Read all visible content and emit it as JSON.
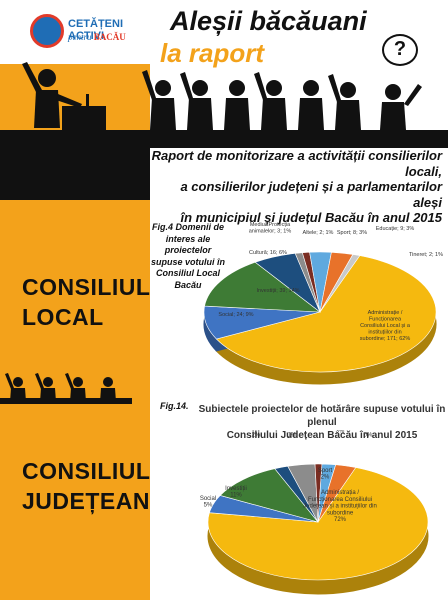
{
  "logo": {
    "line1": "CETĂȚENI ACTIVI",
    "line2_prefix": "pentru",
    "line2_city": "BACĂU"
  },
  "header": {
    "title_line1": "Aleșii băcăuani",
    "title_line2": "la raport",
    "question_mark": "?"
  },
  "report": {
    "lines": [
      "Raport de monitorizare a activității consilierilor locali,",
      "a consilierilor județeni și a parlamentarilor aleși",
      "în municipiul și județul Bacău în anul 2015"
    ]
  },
  "sections": {
    "local": {
      "line1": "CONSILIUL",
      "line2": "LOCAL"
    },
    "judetean": {
      "line1": "CONSILIUL",
      "line2": "JUDEȚEAN"
    }
  },
  "colors": {
    "orange": "#f3a21b",
    "black": "#111111",
    "blue": "#1f6db5",
    "red": "#e23b2a"
  },
  "chart_data": [
    {
      "type": "pie",
      "figure_label": "Fig.4",
      "title": "Domenii de interes ale proiectelor supuse votului în Consiliul Local Bacău",
      "slices": [
        {
          "label": "Administrație / Funcționarea Consiliului Local și a instituțiilor din subordine",
          "value": 171,
          "percent": 62,
          "color": "#f5b90f"
        },
        {
          "label": "Social",
          "value": 24,
          "percent": 9,
          "color": "#3f74c3"
        },
        {
          "label": "Investiții",
          "value": 39,
          "percent": 14,
          "color": "#3e7b35"
        },
        {
          "label": "Cultură",
          "value": 16,
          "percent": 6,
          "color": "#1d4e7e"
        },
        {
          "label": "Mediu&Protecția animalelor",
          "value": 3,
          "percent": 1,
          "color": "#8c8c8c"
        },
        {
          "label": "Altele",
          "value": 2,
          "percent": 1,
          "color": "#7a2d22"
        },
        {
          "label": "Sport",
          "value": 8,
          "percent": 3,
          "color": "#5fa9df"
        },
        {
          "label": "Educație",
          "value": 9,
          "percent": 3,
          "color": "#e8722a"
        },
        {
          "label": "Tineret",
          "value": 2,
          "percent": 1,
          "color": "#c9c9c9"
        }
      ],
      "data_labels": [
        "Administrație / Funcționarea Consiliului Local și a instituțiilor din subordine; 171; 62%",
        "Social; 24; 9%",
        "Investiții; 39; 14%",
        "Cultură; 16; 6%",
        "Mediu&Protecția animalelor; 3; 1%",
        "Altele; 2; 1%",
        "Sport; 8; 3%",
        "Educație; 9; 3%",
        "Tineret; 2; 1%"
      ]
    },
    {
      "type": "pie",
      "figure_label": "Fig.14.",
      "title_lines": [
        "Subiectele proiectelor de hotărâre supuse votului în plenul",
        "Consiliului Județean Bacău în anul 2015"
      ],
      "slices": [
        {
          "label": "Administrația / Funcționarea Consiliului Județean și a instituțiilor din subordine",
          "percent": 72,
          "color": "#f5b90f"
        },
        {
          "label": "Social",
          "percent": 5,
          "color": "#3f74c3"
        },
        {
          "label": "Investiții",
          "percent": 11,
          "color": "#3e7b35"
        },
        {
          "label": "Cultură",
          "percent": 2,
          "color": "#1d4e7e"
        },
        {
          "label": "Mediu&Protecția animalelor",
          "percent": 4,
          "color": "#8c8c8c"
        },
        {
          "label": "Altele",
          "percent": 1,
          "color": "#7a2d22"
        },
        {
          "label": "Sport",
          "percent": 2,
          "color": "#5fa9df"
        },
        {
          "label": "Educație",
          "percent": 3,
          "color": "#e8722a"
        },
        {
          "label": "Tineret",
          "percent": 0,
          "color": "#c9c9c9"
        }
      ],
      "data_labels": [
        {
          "name": "Administrația / Funcționarea Consiliului Județean și a instituțiilor din subordine",
          "pct": "72%"
        },
        {
          "name": "Social",
          "pct": "5%"
        },
        {
          "name": "Investiții",
          "pct": "11%"
        },
        {
          "name": "Cultură",
          "pct": "2%"
        },
        {
          "name": "Mediu&Protecția animalelor",
          "pct": "4%"
        },
        {
          "name": "Altele",
          "pct": "1%"
        },
        {
          "name": "Sport",
          "pct": "2%"
        },
        {
          "name": "Educație",
          "pct": "3%"
        },
        {
          "name": "Tineret",
          "pct": "0%"
        }
      ]
    }
  ]
}
